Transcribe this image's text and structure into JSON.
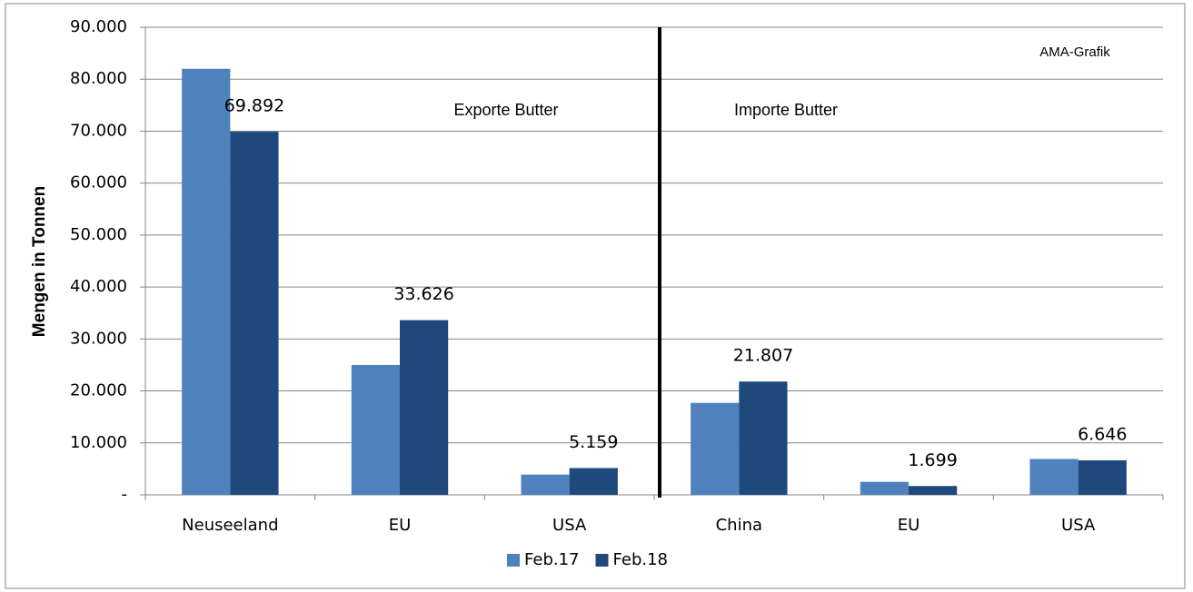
{
  "chart_data": {
    "type": "bar",
    "ylabel": "Mengen in Tonnen",
    "categories": [
      "Neuseeland",
      "EU",
      "USA",
      "China",
      "EU",
      "USA"
    ],
    "series": [
      {
        "name": "Feb.17",
        "color": "#4f81bd",
        "values": [
          82000,
          25000,
          3900,
          17700,
          2500,
          6900
        ]
      },
      {
        "name": "Feb.18",
        "color": "#1f497d",
        "values": [
          69892,
          33626,
          5159,
          21807,
          1699,
          6646
        ],
        "value_labels": [
          "69.892",
          "33.626",
          "5.159",
          "21.807",
          "1.699",
          "6.646"
        ]
      }
    ],
    "ylim": [
      0,
      90000
    ],
    "yticks": [
      {
        "value": 0,
        "label": "-"
      },
      {
        "value": 10000,
        "label": "10.000"
      },
      {
        "value": 20000,
        "label": "20.000"
      },
      {
        "value": 30000,
        "label": "30.000"
      },
      {
        "value": 40000,
        "label": "40.000"
      },
      {
        "value": 50000,
        "label": "50.000"
      },
      {
        "value": 60000,
        "label": "60.000"
      },
      {
        "value": 70000,
        "label": "70.000"
      },
      {
        "value": 80000,
        "label": "80.000"
      },
      {
        "value": 90000,
        "label": "90.000"
      }
    ],
    "grid": true,
    "legend": "bottom",
    "annotations": [
      "Exporte Butter",
      "Importe Butter",
      "AMA-Grafik"
    ]
  }
}
